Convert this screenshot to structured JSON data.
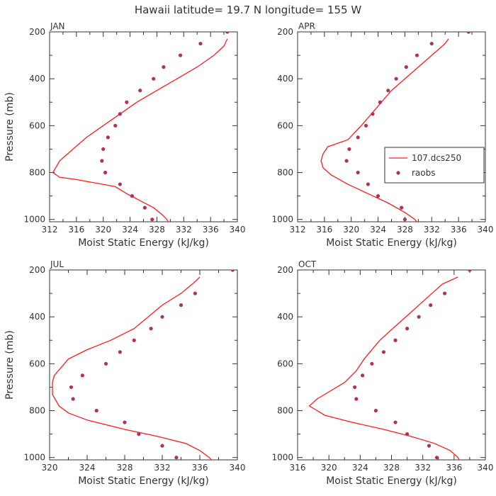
{
  "figure_title": "Hawaii  latitude= 19.7 N longitude= 155 W",
  "colors": {
    "model": "#ff1a1a",
    "obs": "#b03060",
    "axis": "#333333"
  },
  "legend": {
    "model_label": "107.dcs250",
    "obs_label": "raobs"
  },
  "chart_data": [
    {
      "type": "line",
      "title": "JAN",
      "xlabel": "Moist Static Energy (kJ/kg)",
      "ylabel": "Pressure (mb)",
      "xlim": [
        312,
        340
      ],
      "ylim": [
        1010,
        200
      ],
      "xticks": [
        312,
        316,
        320,
        324,
        328,
        332,
        336,
        340
      ],
      "yticks": [
        200,
        400,
        600,
        800,
        1000
      ],
      "series": [
        {
          "name": "107.dcs250",
          "kind": "line",
          "x": [
            329.8,
            329.5,
            328.8,
            327.5,
            325.5,
            323.5,
            321.8,
            316.0,
            313.5,
            312.5,
            313.5,
            315.5,
            317.5,
            320.0,
            322.5,
            325.0,
            328.0,
            331.0,
            334.0,
            336.5,
            338.0,
            338.5
          ],
          "y": [
            1020,
            1000,
            980,
            950,
            920,
            890,
            860,
            830,
            820,
            800,
            750,
            700,
            650,
            600,
            550,
            500,
            450,
            400,
            350,
            300,
            260,
            230
          ]
        },
        {
          "name": "raobs",
          "kind": "scatter",
          "x": [
            327.3,
            326.2,
            324.3,
            322.5,
            320.3,
            319.8,
            320.0,
            320.7,
            321.8,
            322.5,
            323.5,
            325.5,
            327.5,
            329.0,
            331.5,
            334.5,
            338.5
          ],
          "y": [
            1000,
            950,
            900,
            850,
            800,
            750,
            700,
            650,
            600,
            550,
            500,
            450,
            400,
            350,
            300,
            250,
            200
          ]
        }
      ]
    },
    {
      "type": "line",
      "title": "APR",
      "xlabel": "Moist Static Energy (kJ/kg)",
      "ylabel": "",
      "xlim": [
        312,
        340
      ],
      "ylim": [
        1010,
        200
      ],
      "xticks": [
        312,
        316,
        320,
        324,
        328,
        332,
        336,
        340
      ],
      "yticks": [
        200,
        400,
        600,
        800,
        1000
      ],
      "series": [
        {
          "name": "107.dcs250",
          "kind": "line",
          "x": [
            330.0,
            329.5,
            328.0,
            325.5,
            322.5,
            319.5,
            317.0,
            315.8,
            315.5,
            315.8,
            316.5,
            319.5,
            321.5,
            323.0,
            324.5,
            326.0,
            328.0,
            330.0,
            332.0,
            334.0,
            334.5
          ],
          "y": [
            1020,
            1000,
            970,
            930,
            890,
            850,
            810,
            780,
            750,
            720,
            690,
            660,
            600,
            550,
            500,
            450,
            400,
            350,
            300,
            250,
            230
          ]
        },
        {
          "name": "raobs",
          "kind": "scatter",
          "x": [
            328.0,
            327.5,
            324.0,
            322.5,
            321.0,
            319.3,
            319.7,
            321.0,
            322.2,
            323.2,
            324.3,
            325.5,
            326.7,
            328.2,
            329.8,
            332.0,
            337.5
          ],
          "y": [
            1000,
            950,
            900,
            850,
            800,
            750,
            700,
            650,
            600,
            550,
            500,
            450,
            400,
            350,
            300,
            250,
            200
          ]
        }
      ]
    },
    {
      "type": "line",
      "title": "JUL",
      "xlabel": "Moist Static Energy (kJ/kg)",
      "ylabel": "Pressure (mb)",
      "xlim": [
        320,
        340
      ],
      "ylim": [
        1010,
        200
      ],
      "xticks": [
        320,
        324,
        328,
        332,
        336,
        340
      ],
      "yticks": [
        200,
        400,
        600,
        800,
        1000
      ],
      "series": [
        {
          "name": "107.dcs250",
          "kind": "line",
          "x": [
            337.5,
            337.0,
            336.0,
            334.5,
            331.5,
            328.0,
            324.0,
            322.0,
            321.0,
            320.3,
            320.3,
            320.5,
            322.0,
            324.0,
            326.5,
            329.0,
            330.5,
            332.0,
            334.0,
            335.5,
            336.0
          ],
          "y": [
            1020,
            1000,
            970,
            940,
            910,
            880,
            840,
            810,
            780,
            730,
            680,
            650,
            580,
            540,
            500,
            450,
            400,
            350,
            300,
            250,
            230
          ]
        },
        {
          "name": "raobs",
          "kind": "scatter",
          "x": [
            333.5,
            332.0,
            329.5,
            328.0,
            325.0,
            322.5,
            322.3,
            323.5,
            326.0,
            327.5,
            329.0,
            330.8,
            332.0,
            334.0,
            335.5,
            339.5
          ],
          "y": [
            1000,
            950,
            900,
            850,
            800,
            750,
            700,
            650,
            600,
            550,
            500,
            450,
            400,
            350,
            300,
            200
          ]
        }
      ]
    },
    {
      "type": "line",
      "title": "OCT",
      "xlabel": "Moist Static Energy (kJ/kg)",
      "ylabel": "",
      "xlim": [
        316,
        340
      ],
      "ylim": [
        1010,
        200
      ],
      "xticks": [
        316,
        320,
        324,
        328,
        332,
        336,
        340
      ],
      "yticks": [
        200,
        400,
        600,
        800,
        1000
      ],
      "series": [
        {
          "name": "107.dcs250",
          "kind": "line",
          "x": [
            336.8,
            336.5,
            335.5,
            333.5,
            330.5,
            327.0,
            323.0,
            319.5,
            318.5,
            317.5,
            318.5,
            320.0,
            322.0,
            323.5,
            324.5,
            326.5,
            328.5,
            330.5,
            332.5,
            334.5,
            336.5
          ],
          "y": [
            1020,
            1000,
            970,
            940,
            910,
            880,
            850,
            820,
            800,
            780,
            750,
            720,
            680,
            630,
            580,
            500,
            440,
            380,
            320,
            260,
            230
          ]
        },
        {
          "name": "raobs",
          "kind": "scatter",
          "x": [
            333.8,
            332.8,
            330.0,
            328.5,
            326.0,
            323.5,
            323.3,
            324.3,
            325.5,
            327.0,
            328.5,
            330.0,
            331.5,
            333.0,
            334.8,
            338.0
          ],
          "y": [
            1000,
            950,
            900,
            850,
            800,
            750,
            700,
            650,
            600,
            550,
            500,
            450,
            400,
            350,
            300,
            200
          ]
        }
      ]
    }
  ]
}
